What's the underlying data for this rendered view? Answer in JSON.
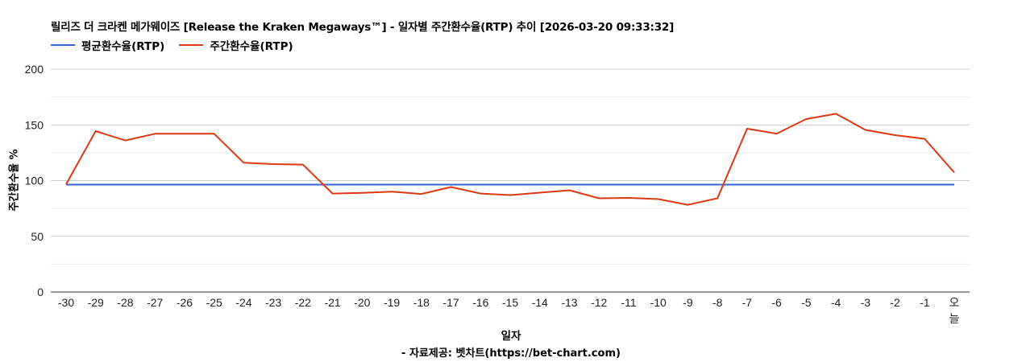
{
  "header": {
    "title": "릴리즈 더 크라켄 메가웨이즈 [Release the Kraken Megaways™] - 일자별 주간환수율(RTP) 추이 [2026-03-20 09:33:32]"
  },
  "legend": {
    "items": [
      {
        "label": "평균환수율(RTP)",
        "color": "#3366cc"
      },
      {
        "label": "주간환수율(RTP)",
        "color": "#dc3912"
      }
    ]
  },
  "axes": {
    "ylabel": "주간환수율 %",
    "xlabel": "일자",
    "yticks": [
      "0",
      "50",
      "100",
      "150",
      "200"
    ]
  },
  "footer": {
    "source": "- 자료제공: 벳차트(https://bet-chart.com)"
  },
  "chart_data": {
    "type": "line",
    "title": "릴리즈 더 크라켄 메가웨이즈 [Release the Kraken Megaways™] - 일자별 주간환수율(RTP) 추이 [2026-03-20 09:33:32]",
    "xlabel": "일자",
    "ylabel": "주간환수율 %",
    "ylim": [
      0,
      200
    ],
    "yticks": [
      0,
      50,
      100,
      150,
      200
    ],
    "grid": true,
    "legend_position": "top",
    "categories": [
      "-30",
      "-29",
      "-28",
      "-27",
      "-26",
      "-25",
      "-24",
      "-23",
      "-22",
      "-21",
      "-20",
      "-19",
      "-18",
      "-17",
      "-16",
      "-15",
      "-14",
      "-13",
      "-12",
      "-11",
      "-10",
      "-9",
      "-8",
      "-7",
      "-6",
      "-5",
      "-4",
      "-3",
      "-2",
      "-1",
      "오늘"
    ],
    "series": [
      {
        "name": "평균환수율(RTP)",
        "color": "#3366cc",
        "values": [
          96.4,
          96.4,
          96.4,
          96.4,
          96.4,
          96.4,
          96.4,
          96.4,
          96.4,
          96.4,
          96.4,
          96.4,
          96.4,
          96.4,
          96.4,
          96.4,
          96.4,
          96.4,
          96.4,
          96.4,
          96.4,
          96.4,
          96.4,
          96.4,
          96.4,
          96.4,
          96.4,
          96.4,
          96.4,
          96.4,
          96.4
        ]
      },
      {
        "name": "주간환수율(RTP)",
        "color": "#dc3912",
        "values": [
          96.7,
          144.4,
          136.0,
          142.0,
          142.0,
          142.0,
          116.0,
          114.8,
          114.4,
          88.4,
          89.0,
          90.0,
          88.0,
          94.2,
          88.4,
          87.0,
          89.2,
          91.3,
          84.1,
          84.5,
          83.4,
          78.3,
          84.1,
          146.6,
          142.2,
          155.2,
          160.0,
          145.5,
          140.8,
          137.5,
          107.2
        ]
      }
    ]
  }
}
